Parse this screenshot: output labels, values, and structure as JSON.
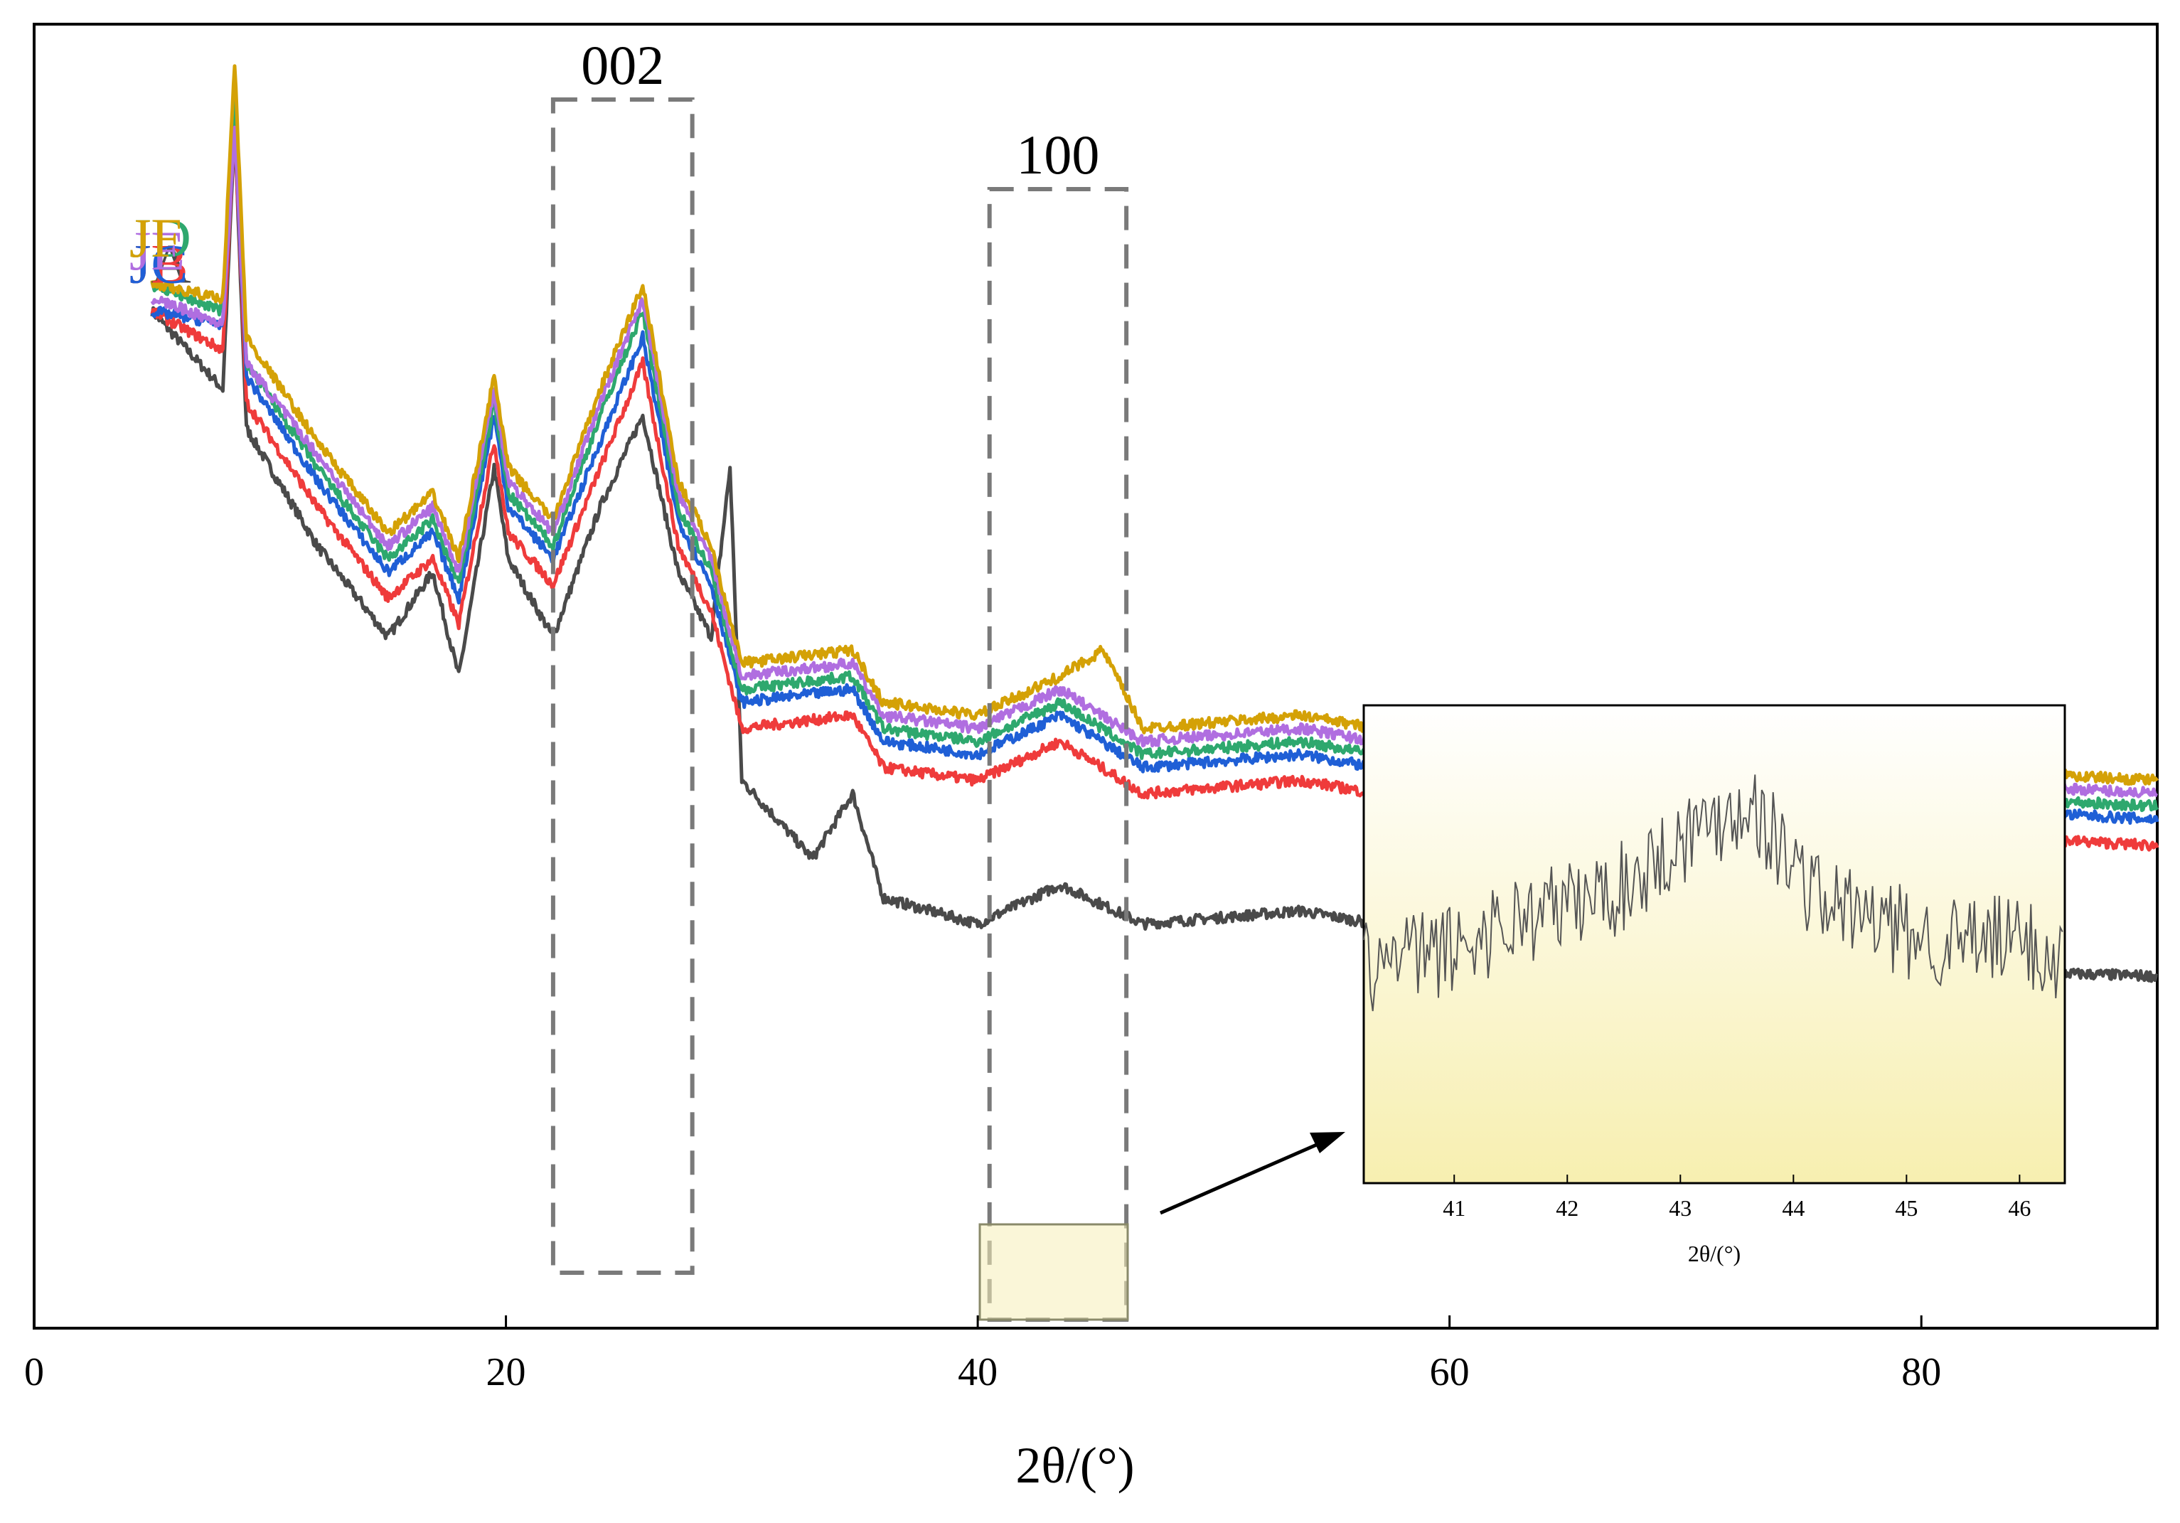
{
  "chart_data": {
    "type": "line",
    "xlabel": "2θ/(°)",
    "ylabel": "",
    "xlim": [
      0,
      90
    ],
    "xticks": [
      0,
      20,
      40,
      60,
      80
    ],
    "yticks_shown": false,
    "series": [
      {
        "name": "JA",
        "color": "#4a4a4a",
        "points": [
          [
            5,
            0.78
          ],
          [
            8,
            0.72
          ],
          [
            8.5,
            0.92
          ],
          [
            9,
            0.69
          ],
          [
            12,
            0.6
          ],
          [
            15,
            0.53
          ],
          [
            16.9,
            0.58
          ],
          [
            18,
            0.5
          ],
          [
            19.5,
            0.66
          ],
          [
            20.1,
            0.59
          ],
          [
            22,
            0.53
          ],
          [
            24,
            0.63
          ],
          [
            25.8,
            0.7
          ],
          [
            27.3,
            0.58
          ],
          [
            28.7,
            0.53
          ],
          [
            29.5,
            0.66
          ],
          [
            30,
            0.42
          ],
          [
            33,
            0.36
          ],
          [
            34.7,
            0.41
          ],
          [
            36,
            0.33
          ],
          [
            40,
            0.31
          ],
          [
            43.5,
            0.34
          ],
          [
            47,
            0.31
          ],
          [
            53.7,
            0.32
          ],
          [
            60,
            0.3
          ],
          [
            61.6,
            0.31
          ],
          [
            70,
            0.28
          ],
          [
            90,
            0.27
          ]
        ]
      },
      {
        "name": "JB",
        "color": "#ef3b3b",
        "points": [
          [
            5,
            0.78
          ],
          [
            8,
            0.75
          ],
          [
            8.5,
            0.92
          ],
          [
            9,
            0.71
          ],
          [
            12,
            0.63
          ],
          [
            15,
            0.56
          ],
          [
            16.9,
            0.59
          ],
          [
            18,
            0.54
          ],
          [
            19.5,
            0.68
          ],
          [
            20.1,
            0.61
          ],
          [
            22,
            0.57
          ],
          [
            24,
            0.66
          ],
          [
            25.8,
            0.74
          ],
          [
            27.3,
            0.6
          ],
          [
            28.7,
            0.55
          ],
          [
            30,
            0.46
          ],
          [
            34.7,
            0.47
          ],
          [
            36,
            0.43
          ],
          [
            40,
            0.42
          ],
          [
            43.5,
            0.45
          ],
          [
            47,
            0.41
          ],
          [
            53.7,
            0.42
          ],
          [
            60,
            0.4
          ],
          [
            70,
            0.39
          ],
          [
            90,
            0.37
          ]
        ]
      },
      {
        "name": "JC",
        "color": "#1f5fd6",
        "points": [
          [
            5,
            0.78
          ],
          [
            8,
            0.77
          ],
          [
            8.5,
            0.92
          ],
          [
            9,
            0.73
          ],
          [
            12,
            0.65
          ],
          [
            15,
            0.58
          ],
          [
            16.9,
            0.61
          ],
          [
            18,
            0.56
          ],
          [
            19.5,
            0.7
          ],
          [
            20.1,
            0.63
          ],
          [
            22,
            0.59
          ],
          [
            24,
            0.68
          ],
          [
            25.8,
            0.76
          ],
          [
            27.3,
            0.62
          ],
          [
            28.7,
            0.57
          ],
          [
            30,
            0.48
          ],
          [
            34.7,
            0.49
          ],
          [
            36,
            0.45
          ],
          [
            40,
            0.44
          ],
          [
            43.5,
            0.47
          ],
          [
            47,
            0.43
          ],
          [
            53.7,
            0.44
          ],
          [
            60,
            0.42
          ],
          [
            70,
            0.41
          ],
          [
            90,
            0.39
          ]
        ]
      },
      {
        "name": "JD",
        "color": "#2ea86e",
        "points": [
          [
            5,
            0.8
          ],
          [
            8,
            0.78
          ],
          [
            8.5,
            0.95
          ],
          [
            9,
            0.74
          ],
          [
            12,
            0.66
          ],
          [
            15,
            0.59
          ],
          [
            16.9,
            0.62
          ],
          [
            18,
            0.57
          ],
          [
            19.5,
            0.71
          ],
          [
            20.1,
            0.64
          ],
          [
            22,
            0.6
          ],
          [
            24,
            0.7
          ],
          [
            25.8,
            0.78
          ],
          [
            27.3,
            0.63
          ],
          [
            28.7,
            0.58
          ],
          [
            30,
            0.49
          ],
          [
            34.7,
            0.5
          ],
          [
            36,
            0.46
          ],
          [
            40,
            0.45
          ],
          [
            43.5,
            0.48
          ],
          [
            47,
            0.44
          ],
          [
            53.7,
            0.45
          ],
          [
            60,
            0.43
          ],
          [
            70,
            0.42
          ],
          [
            90,
            0.4
          ]
        ]
      },
      {
        "name": "JE",
        "color": "#b06ee0",
        "points": [
          [
            5,
            0.79
          ],
          [
            8,
            0.77
          ],
          [
            8.5,
            0.92
          ],
          [
            9,
            0.74
          ],
          [
            12,
            0.67
          ],
          [
            15,
            0.6
          ],
          [
            16.9,
            0.63
          ],
          [
            18,
            0.58
          ],
          [
            19.5,
            0.72
          ],
          [
            20.1,
            0.65
          ],
          [
            22,
            0.61
          ],
          [
            24,
            0.71
          ],
          [
            25.8,
            0.79
          ],
          [
            27.3,
            0.64
          ],
          [
            28.7,
            0.59
          ],
          [
            30,
            0.5
          ],
          [
            34.7,
            0.51
          ],
          [
            36,
            0.47
          ],
          [
            40,
            0.46
          ],
          [
            43.5,
            0.49
          ],
          [
            47,
            0.45
          ],
          [
            53.7,
            0.46
          ],
          [
            60,
            0.44
          ],
          [
            70,
            0.43
          ],
          [
            90,
            0.41
          ]
        ]
      },
      {
        "name": "JF",
        "color": "#d4a106",
        "points": [
          [
            5,
            0.8
          ],
          [
            8,
            0.79
          ],
          [
            8.5,
            0.97
          ],
          [
            9,
            0.76
          ],
          [
            12,
            0.68
          ],
          [
            15,
            0.61
          ],
          [
            16.9,
            0.64
          ],
          [
            18,
            0.59
          ],
          [
            19.5,
            0.73
          ],
          [
            20.1,
            0.66
          ],
          [
            22,
            0.62
          ],
          [
            24,
            0.72
          ],
          [
            25.8,
            0.8
          ],
          [
            27.3,
            0.65
          ],
          [
            28.7,
            0.6
          ],
          [
            30,
            0.51
          ],
          [
            34.7,
            0.52
          ],
          [
            36,
            0.48
          ],
          [
            40,
            0.47
          ],
          [
            43.5,
            0.5
          ],
          [
            45.3,
            0.52
          ],
          [
            47,
            0.46
          ],
          [
            53.7,
            0.47
          ],
          [
            60,
            0.45
          ],
          [
            61.6,
            0.46
          ],
          [
            70,
            0.44
          ],
          [
            90,
            0.42
          ]
        ]
      }
    ],
    "annotations": [
      {
        "label": "002",
        "x_range": [
          22,
          27.9
        ]
      },
      {
        "label": "100",
        "x_range": [
          40.5,
          46.3
        ]
      }
    ],
    "inset": {
      "xlabel": "2θ/(°)",
      "xlim": [
        40.2,
        46.4
      ],
      "xticks": [
        41,
        42,
        43,
        44,
        45,
        46
      ],
      "source_series": "JA",
      "points": [
        [
          40.2,
          0.45
        ],
        [
          40.6,
          0.47
        ],
        [
          41.0,
          0.49
        ],
        [
          41.5,
          0.55
        ],
        [
          42.0,
          0.58
        ],
        [
          42.5,
          0.62
        ],
        [
          43.0,
          0.72
        ],
        [
          43.3,
          0.76
        ],
        [
          43.6,
          0.8
        ],
        [
          43.9,
          0.7
        ],
        [
          44.2,
          0.6
        ],
        [
          44.6,
          0.56
        ],
        [
          45.0,
          0.52
        ],
        [
          45.5,
          0.5
        ],
        [
          46.0,
          0.51
        ],
        [
          46.4,
          0.46
        ]
      ]
    }
  }
}
